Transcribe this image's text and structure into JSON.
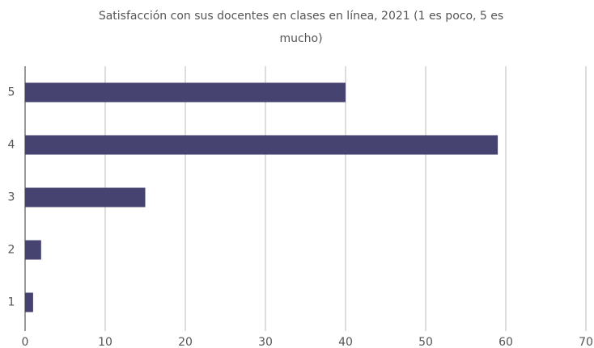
{
  "chart_data": {
    "type": "bar",
    "orientation": "horizontal",
    "title": "Satisfacción con sus docentes en clases en línea, 2021 (1 es poco, 5 es mucho)",
    "categories": [
      "5",
      "4",
      "3",
      "2",
      "1"
    ],
    "values": [
      40,
      59,
      15,
      2,
      1
    ],
    "color": "#464370",
    "xlim": [
      0,
      70
    ],
    "xticks": [
      0,
      10,
      20,
      30,
      40,
      50,
      60,
      70
    ],
    "grid": true
  }
}
